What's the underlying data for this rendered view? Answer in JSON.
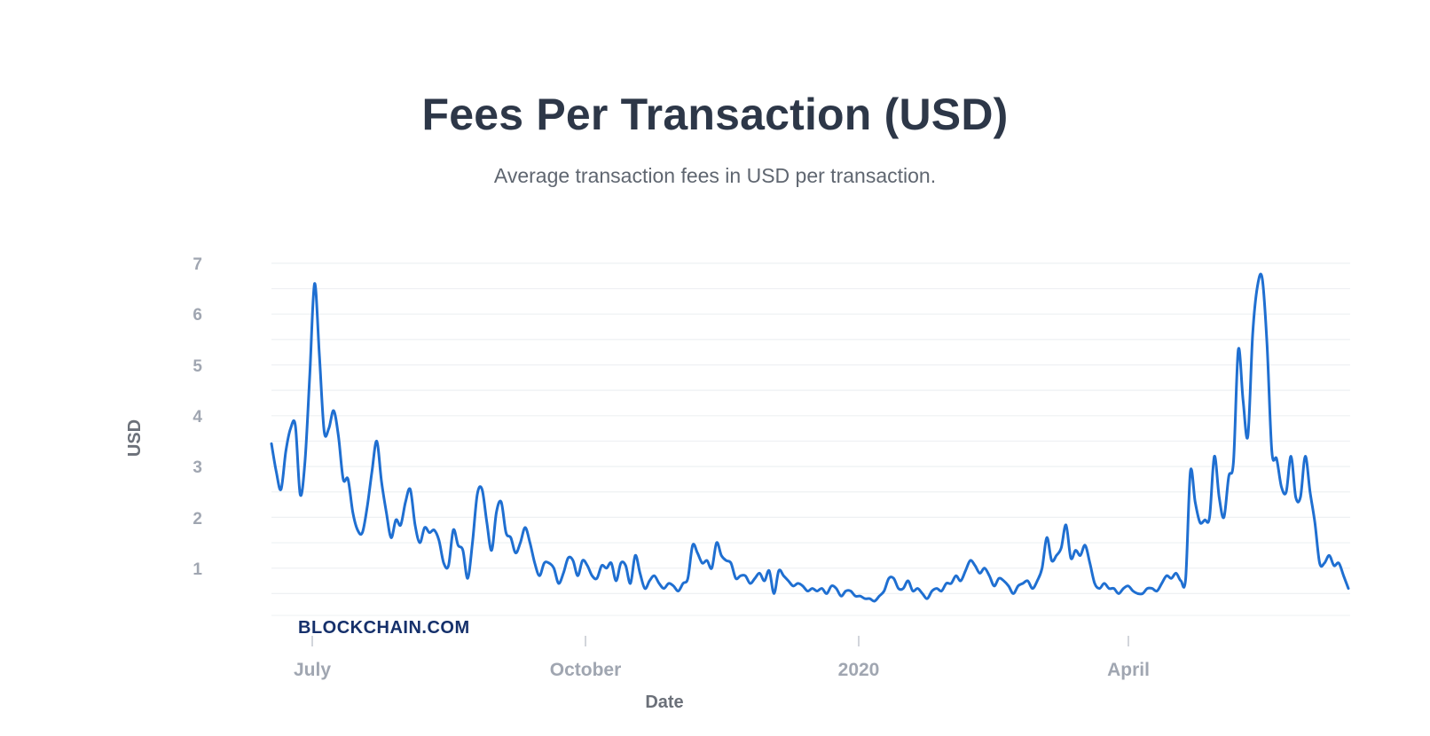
{
  "header": {
    "title": "Fees Per Transaction (USD)",
    "subtitle": "Average transaction fees in USD per transaction."
  },
  "watermark": "BLOCKCHAIN.COM",
  "colors": {
    "line": "#1f6fd1",
    "grid": "#eef0f3",
    "tick_text": "#a0a6b1",
    "title": "#2d3748",
    "watermark": "#15306b"
  },
  "chart_data": {
    "type": "line",
    "title": "Fees Per Transaction (USD)",
    "subtitle": "Average transaction fees in USD per transaction.",
    "xlabel": "Date",
    "ylabel": "USD",
    "ylim": [
      0,
      7
    ],
    "yticks": [
      1,
      2,
      3,
      4,
      5,
      6,
      7
    ],
    "xtick_labels": [
      "July",
      "October",
      "2020",
      "April"
    ],
    "grid": true,
    "legend": null,
    "series": [
      {
        "name": "Fees Per Transaction (USD)",
        "x_range": [
          "late June 2019",
          "mid June 2020"
        ],
        "values": [
          3.45,
          2.9,
          2.55,
          3.3,
          3.75,
          3.8,
          2.45,
          3.1,
          4.8,
          6.6,
          5.2,
          3.7,
          3.75,
          4.1,
          3.6,
          2.75,
          2.75,
          2.1,
          1.75,
          1.7,
          2.2,
          2.9,
          3.5,
          2.7,
          2.1,
          1.6,
          1.95,
          1.85,
          2.3,
          2.55,
          1.85,
          1.5,
          1.8,
          1.7,
          1.75,
          1.55,
          1.1,
          1.05,
          1.75,
          1.45,
          1.35,
          0.8,
          1.5,
          2.45,
          2.55,
          1.9,
          1.35,
          2.1,
          2.3,
          1.7,
          1.6,
          1.3,
          1.5,
          1.8,
          1.5,
          1.1,
          0.85,
          1.1,
          1.1,
          1.0,
          0.7,
          0.9,
          1.2,
          1.15,
          0.85,
          1.15,
          1.05,
          0.85,
          0.8,
          1.05,
          1.0,
          1.1,
          0.75,
          1.1,
          1.05,
          0.7,
          1.25,
          0.9,
          0.6,
          0.75,
          0.85,
          0.7,
          0.6,
          0.7,
          0.65,
          0.55,
          0.7,
          0.8,
          1.45,
          1.3,
          1.1,
          1.15,
          1.0,
          1.5,
          1.25,
          1.15,
          1.1,
          0.8,
          0.85,
          0.85,
          0.7,
          0.8,
          0.9,
          0.75,
          0.95,
          0.5,
          0.95,
          0.85,
          0.75,
          0.65,
          0.7,
          0.65,
          0.55,
          0.6,
          0.55,
          0.6,
          0.5,
          0.65,
          0.6,
          0.45,
          0.55,
          0.55,
          0.45,
          0.45,
          0.4,
          0.4,
          0.35,
          0.45,
          0.55,
          0.8,
          0.8,
          0.6,
          0.6,
          0.75,
          0.55,
          0.6,
          0.5,
          0.4,
          0.55,
          0.6,
          0.55,
          0.7,
          0.7,
          0.85,
          0.75,
          0.95,
          1.15,
          1.05,
          0.9,
          1.0,
          0.85,
          0.65,
          0.8,
          0.75,
          0.65,
          0.5,
          0.65,
          0.7,
          0.75,
          0.6,
          0.75,
          1.0,
          1.6,
          1.15,
          1.25,
          1.4,
          1.85,
          1.2,
          1.35,
          1.25,
          1.45,
          1.1,
          0.7,
          0.6,
          0.7,
          0.6,
          0.6,
          0.5,
          0.6,
          0.65,
          0.55,
          0.5,
          0.5,
          0.6,
          0.6,
          0.55,
          0.7,
          0.85,
          0.8,
          0.9,
          0.75,
          0.8,
          2.9,
          2.3,
          1.9,
          1.95,
          2.0,
          3.2,
          2.4,
          2.0,
          2.8,
          3.1,
          5.3,
          4.3,
          3.6,
          5.6,
          6.55,
          6.7,
          5.4,
          3.3,
          3.15,
          2.6,
          2.5,
          3.2,
          2.4,
          2.4,
          3.2,
          2.5,
          1.9,
          1.1,
          1.1,
          1.25,
          1.05,
          1.1,
          0.85,
          0.6
        ]
      }
    ]
  },
  "axes": {
    "y_ticks": [
      "1",
      "2",
      "3",
      "4",
      "5",
      "6",
      "7"
    ],
    "x_ticks": [
      "July",
      "October",
      "2020",
      "April"
    ],
    "x_label": "Date",
    "y_label": "USD"
  }
}
